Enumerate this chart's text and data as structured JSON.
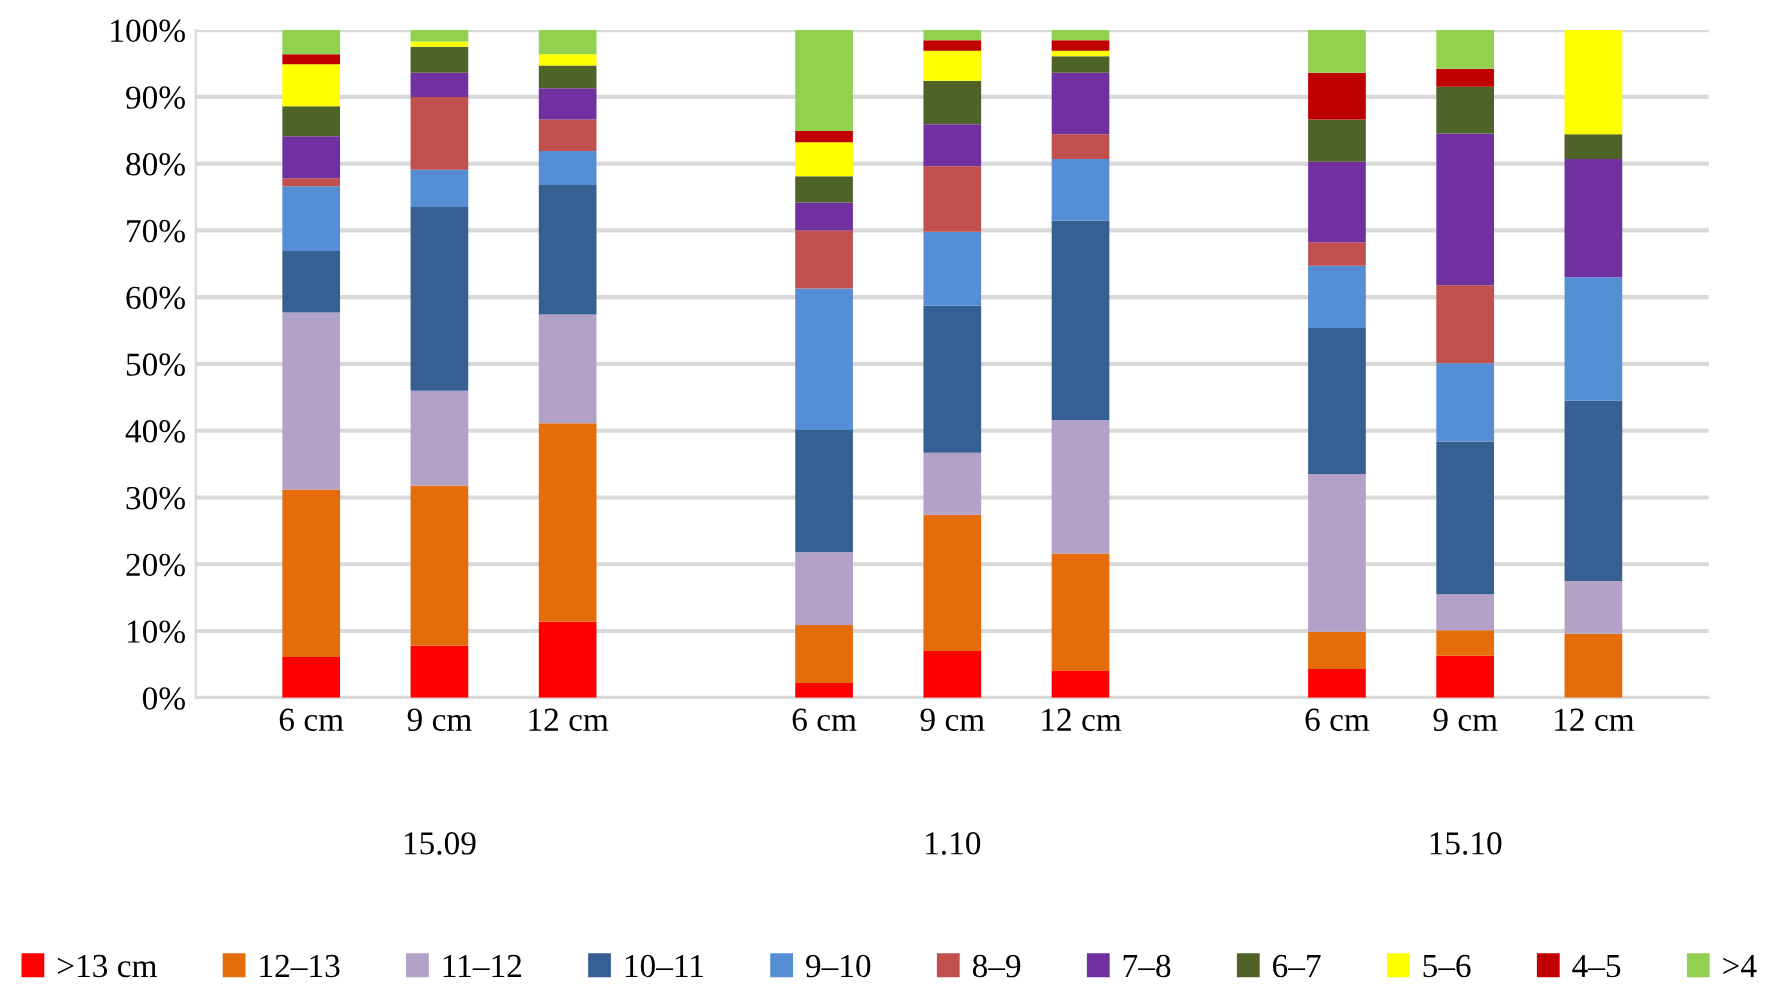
{
  "chart_data": {
    "type": "bar",
    "stacked": true,
    "categories": [
      "6 cm",
      "9 cm",
      "12 cm",
      null,
      "6 cm",
      "9 cm",
      "12 cm",
      null,
      "6 cm",
      "9 cm",
      "12 cm"
    ],
    "series": [
      {
        "name": ">13 cm",
        "color": "#ff0000",
        "values": [
          6.1,
          7.8,
          11.4,
          null,
          2.2,
          7.0,
          4.0,
          null,
          4.3,
          6.3,
          0
        ]
      },
      {
        "name": "12–13",
        "color": "#e46c0a",
        "values": [
          25.1,
          24.0,
          29.7,
          null,
          8.7,
          20.4,
          17.6,
          null,
          5.6,
          3.8,
          9.6
        ]
      },
      {
        "name": "11–12",
        "color": "#b3a2c7",
        "values": [
          26.5,
          14.2,
          16.3,
          null,
          10.9,
          9.3,
          20.0,
          null,
          23.6,
          5.4,
          7.9
        ]
      },
      {
        "name": "10–11",
        "color": "#376092",
        "values": [
          9.2,
          27.5,
          19.4,
          null,
          18.3,
          22.0,
          29.9,
          null,
          21.9,
          22.9,
          27.0
        ]
      },
      {
        "name": "9–10",
        "color": "#558ed5",
        "values": [
          9.7,
          5.6,
          5.1,
          null,
          21.2,
          11.1,
          9.2,
          null,
          9.3,
          11.7,
          18.5
        ]
      },
      {
        "name": "8–9",
        "color": "#c0504d",
        "values": [
          1.2,
          10.9,
          4.7,
          null,
          8.7,
          9.8,
          3.7,
          null,
          3.5,
          11.7,
          0
        ]
      },
      {
        "name": "7–8",
        "color": "#7030a0",
        "values": [
          6.3,
          3.6,
          4.7,
          null,
          4.2,
          6.3,
          9.2,
          null,
          12.1,
          22.7,
          17.7
        ]
      },
      {
        "name": "6–7",
        "color": "#4f6228",
        "values": [
          4.5,
          3.9,
          3.4,
          null,
          3.9,
          6.5,
          2.5,
          null,
          6.3,
          7.0,
          3.7
        ]
      },
      {
        "name": "5–6",
        "color": "#ffff00",
        "values": [
          6.3,
          0.8,
          1.7,
          null,
          5.1,
          4.5,
          0.8,
          null,
          0,
          0,
          15.6
        ]
      },
      {
        "name": "4–5",
        "color": "#c00000",
        "values": [
          1.5,
          0,
          0,
          null,
          1.7,
          1.6,
          1.6,
          null,
          7.0,
          2.7,
          0
        ]
      },
      {
        "name": ">4",
        "color": "#92d050",
        "values": [
          3.6,
          1.7,
          3.6,
          null,
          15.1,
          1.5,
          1.5,
          null,
          6.4,
          5.8,
          0
        ]
      }
    ],
    "ylim": [
      0,
      100
    ],
    "yticks": [
      {
        "value": 0,
        "label": "0%"
      },
      {
        "value": 10,
        "label": "10%"
      },
      {
        "value": 20,
        "label": "20%"
      },
      {
        "value": 30,
        "label": "30%"
      },
      {
        "value": 40,
        "label": "40%"
      },
      {
        "value": 50,
        "label": "50%"
      },
      {
        "value": 60,
        "label": "60%"
      },
      {
        "value": 70,
        "label": "70%"
      },
      {
        "value": 80,
        "label": "80%"
      },
      {
        "value": 90,
        "label": "90%"
      },
      {
        "value": 100,
        "label": "100%"
      }
    ],
    "grid": "y",
    "legend": "bottom",
    "annotations": [
      "15.09",
      "1.10",
      "15.10"
    ]
  }
}
